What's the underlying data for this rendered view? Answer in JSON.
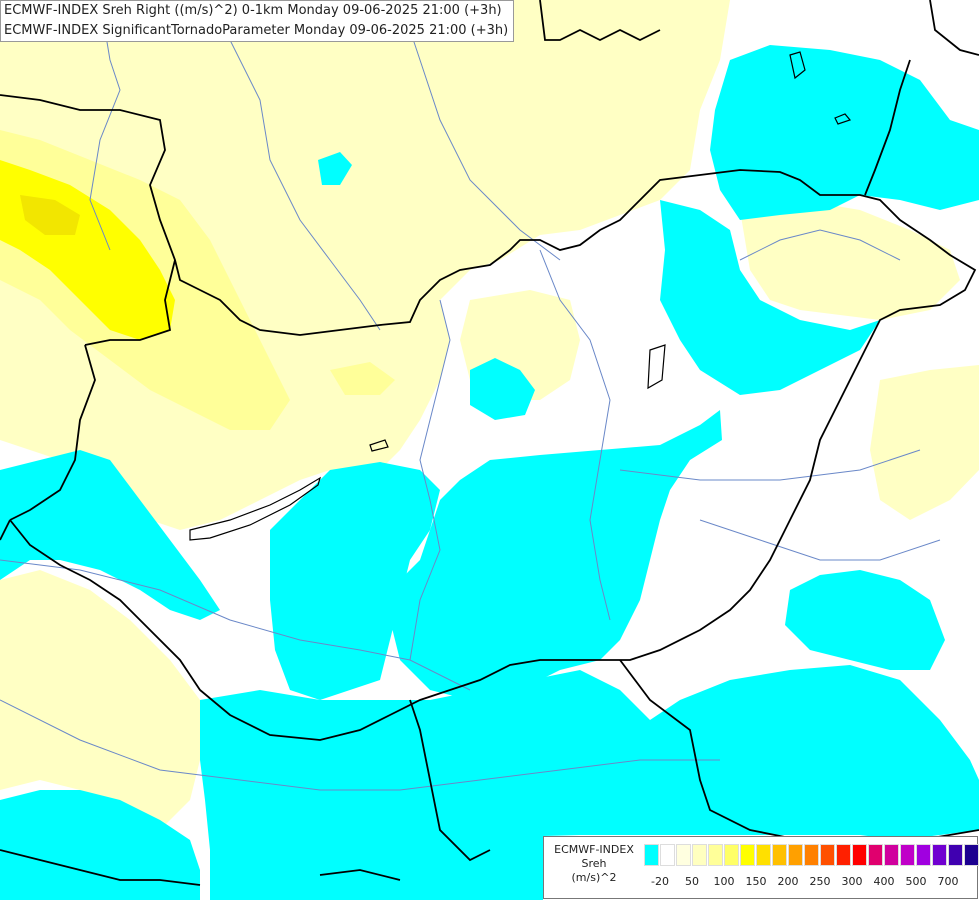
{
  "header": {
    "line1": "ECMWF-INDEX Sreh Right ((m/s)^2) 0-1km Monday 09-06-2025 21:00 (+3h)",
    "line2": "ECMWF-INDEX SignificantTornadoParameter Monday 09-06-2025 21:00 (+3h)"
  },
  "map": {
    "colors": {
      "background": "#ffffff",
      "cyan_band": "#00ffff",
      "pale_yellow_band": "#ffffc4",
      "light_yellow_band": "#ffff99",
      "yellow_band": "#ffff00",
      "border_line": "#000000",
      "river_line": "#6a88c8"
    }
  },
  "legend": {
    "line1": "ECMWF-INDEX",
    "line2": "Sreh",
    "line3": "(m/s)^2",
    "swatches": [
      "#00ffff",
      "#ffffff",
      "#ffffe0",
      "#ffffc0",
      "#ffff99",
      "#ffff66",
      "#ffff00",
      "#ffe000",
      "#ffc000",
      "#ffa000",
      "#ff8000",
      "#ff5000",
      "#ff2000",
      "#ff0000",
      "#e0006e",
      "#d0009e",
      "#c000c8",
      "#a000e0",
      "#7000d0",
      "#4000b0",
      "#1c0090"
    ],
    "labels": [
      "-20",
      "50",
      "100",
      "150",
      "200",
      "250",
      "300",
      "400",
      "500",
      "700"
    ]
  }
}
